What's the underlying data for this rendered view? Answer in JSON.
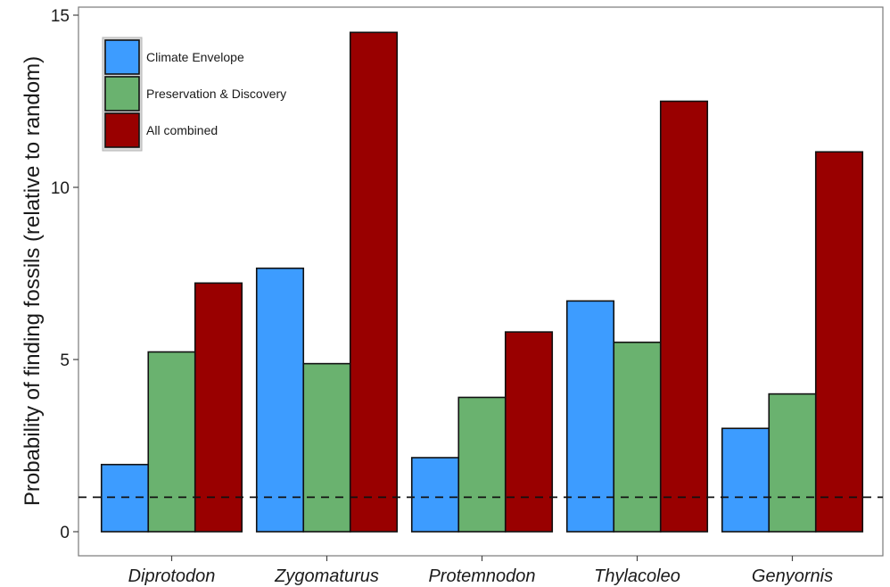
{
  "chart_data": {
    "type": "bar",
    "title": "",
    "xlabel": "",
    "ylabel": "Probability of finding fossils (relative to random)",
    "ylim": [
      0,
      15
    ],
    "yticks": [
      0,
      5,
      10,
      15
    ],
    "categories": [
      "Diprotodon",
      "Zygomaturus",
      "Protemnodon",
      "Thylacoleo",
      "Genyornis"
    ],
    "series": [
      {
        "name": "Climate Envelope",
        "color": "#3d9cff",
        "values": [
          1.95,
          7.65,
          2.15,
          6.7,
          3.0
        ]
      },
      {
        "name": "Preservation & Discovery",
        "color": "#6ab26f",
        "values": [
          5.22,
          4.88,
          3.9,
          5.5,
          4.0
        ]
      },
      {
        "name": "All combined",
        "color": "#990000",
        "values": [
          7.22,
          14.5,
          5.8,
          12.5,
          11.03
        ]
      }
    ],
    "reference_line": {
      "y": 1,
      "style": "dashed"
    },
    "legend_position": "top-left",
    "grid": false
  }
}
